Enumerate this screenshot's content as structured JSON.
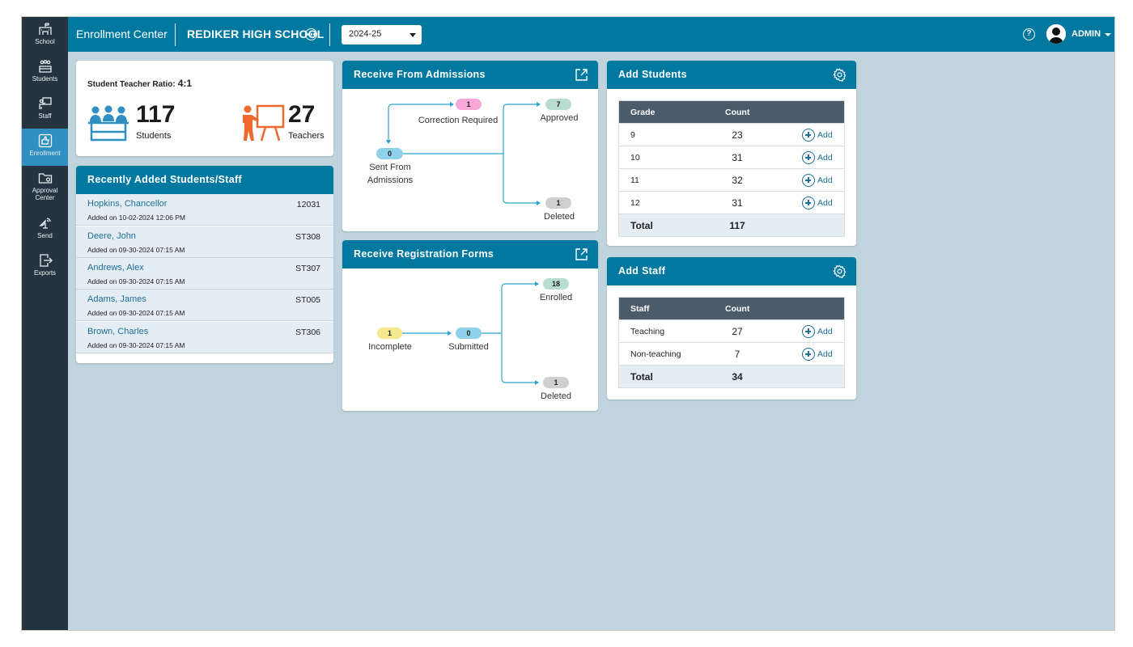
{
  "sidebar": {
    "items": [
      {
        "label": "School",
        "icon": "school-icon"
      },
      {
        "label": "Students",
        "icon": "students-icon"
      },
      {
        "label": "Staff",
        "icon": "staff-icon"
      },
      {
        "label": "Enrollment",
        "icon": "thumbs-up-icon",
        "active": true
      },
      {
        "label": "Approval Center",
        "icon": "folder-icon"
      },
      {
        "label": "Send",
        "icon": "satellite-icon"
      },
      {
        "label": "Exports",
        "icon": "export-icon"
      }
    ]
  },
  "header": {
    "title": "Enrollment Center",
    "school": "REDIKER HIGH SCHOOL",
    "year": "2024-25",
    "user": "ADMIN"
  },
  "ratio": {
    "label": "Student Teacher Ratio:",
    "value": "4:1",
    "students_count": "117",
    "students_label": "Students",
    "teachers_count": "27",
    "teachers_label": "Teachers"
  },
  "recent": {
    "title": "Recently Added Students/Staff",
    "rows": [
      {
        "name": "Hopkins, Chancellor",
        "date": "Added on 10-02-2024 12:06 PM",
        "id": "12031"
      },
      {
        "name": "Deere, John",
        "date": "Added on 09-30-2024 07:15 AM",
        "id": "ST308"
      },
      {
        "name": "Andrews, Alex",
        "date": "Added on 09-30-2024 07:15 AM",
        "id": "ST307"
      },
      {
        "name": "Adams, James",
        "date": "Added on 09-30-2024 07:15 AM",
        "id": "ST005"
      },
      {
        "name": "Brown, Charles",
        "date": "Added on 09-30-2024 07:15 AM",
        "id": "ST306"
      }
    ]
  },
  "admissions": {
    "title": "Receive From Admissions",
    "correction": {
      "count": "1",
      "label": "Correction Required"
    },
    "approved": {
      "count": "7",
      "label": "Approved"
    },
    "sent": {
      "count": "0",
      "label1": "Sent From",
      "label2": "Admissions"
    },
    "deleted": {
      "count": "1",
      "label": "Deleted"
    }
  },
  "registration": {
    "title": "Receive Registration Forms",
    "enrolled": {
      "count": "18",
      "label": "Enrolled"
    },
    "incomplete": {
      "count": "1",
      "label": "Incomplete"
    },
    "submitted": {
      "count": "0",
      "label": "Submitted"
    },
    "deleted": {
      "count": "1",
      "label": "Deleted"
    }
  },
  "add_students": {
    "title": "Add Students",
    "col1": "Grade",
    "col2": "Count",
    "add_label": "Add",
    "rows": [
      {
        "grade": "9",
        "count": "23"
      },
      {
        "grade": "10",
        "count": "31"
      },
      {
        "grade": "11",
        "count": "32"
      },
      {
        "grade": "12",
        "count": "31"
      }
    ],
    "total_label": "Total",
    "total": "117"
  },
  "add_staff": {
    "title": "Add Staff",
    "col1": "Staff",
    "col2": "Count",
    "add_label": "Add",
    "rows": [
      {
        "type": "Teaching",
        "count": "27"
      },
      {
        "type": "Non-teaching",
        "count": "7"
      }
    ],
    "total_label": "Total",
    "total": "34"
  },
  "colors": {
    "header": "#00789f",
    "sidebar": "#263442",
    "background": "#bfd4dc",
    "pill_pink": "#f7a8d8",
    "pill_green": "#b8dccf",
    "pill_blue": "#8fd0ea",
    "pill_grey": "#cfcfcf",
    "pill_yellow": "#f3ea8e",
    "students_icon": "#2f8fc1",
    "teacher_icon": "#ee6a2c"
  }
}
